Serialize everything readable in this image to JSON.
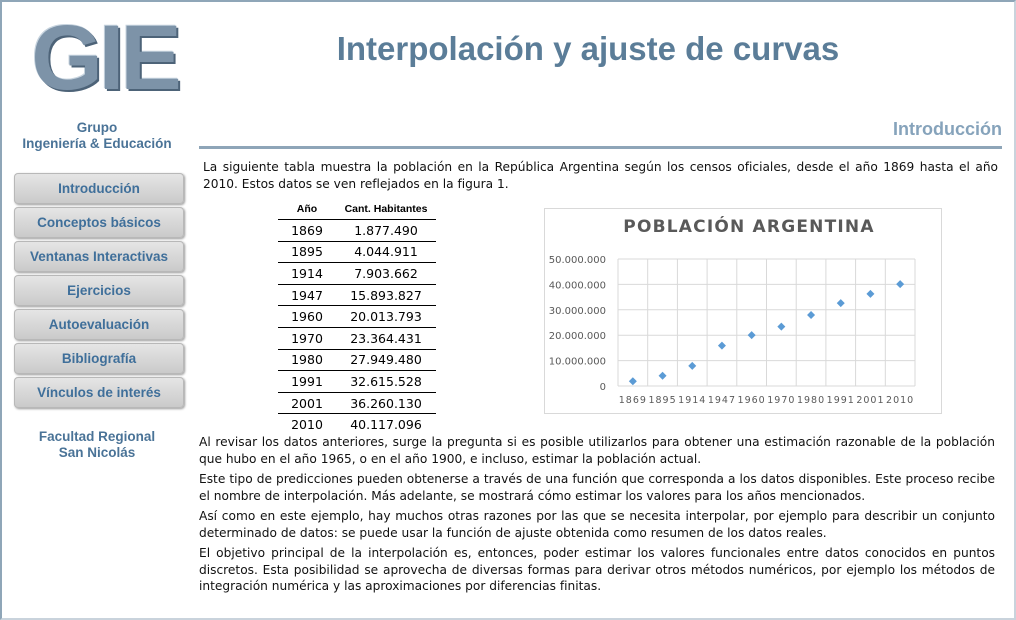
{
  "logo": "GIE",
  "sidebar": {
    "group": [
      "Grupo",
      "Ingeniería & Educación"
    ],
    "nav": [
      "Introducción",
      "Conceptos básicos",
      "Ventanas Interactivas",
      "Ejercicios",
      "Autoevaluación",
      "Bibliografía",
      "Vínculos de interés"
    ],
    "faculty": [
      "Facultad Regional",
      "San Nicolás"
    ]
  },
  "header": {
    "title": "Interpolación y ajuste de curvas",
    "section": "Introducción"
  },
  "intro": "La siguiente tabla muestra la población en la República Argentina según los censos oficiales, desde el año 1869 hasta el año 2010. Estos datos se ven reflejados en la figura 1.",
  "table": {
    "header": [
      "Año",
      "Cant. Habitantes"
    ],
    "rows": [
      [
        "1869",
        "1.877.490"
      ],
      [
        "1895",
        "4.044.911"
      ],
      [
        "1914",
        "7.903.662"
      ],
      [
        "1947",
        "15.893.827"
      ],
      [
        "1960",
        "20.013.793"
      ],
      [
        "1970",
        "23.364.431"
      ],
      [
        "1980",
        "27.949.480"
      ],
      [
        "1991",
        "32.615.528"
      ],
      [
        "2001",
        "36.260.130"
      ],
      [
        "2010",
        "40.117.096"
      ]
    ]
  },
  "chart_data": {
    "type": "scatter",
    "title": "POBLACIÓN ARGENTINA",
    "categories": [
      "1869",
      "1895",
      "1914",
      "1947",
      "1960",
      "1970",
      "1980",
      "1991",
      "2001",
      "2010"
    ],
    "values": [
      1877490,
      4044911,
      7903662,
      15893827,
      20013793,
      23364431,
      27949480,
      32615528,
      36260130,
      40117096
    ],
    "color": "#5b9bd5",
    "ylim": [
      0,
      50000000
    ],
    "yticks": [
      0,
      {
        "value": 10000000,
        "label": "10.000.000"
      },
      {
        "value": 20000000,
        "label": "20.000.000"
      },
      {
        "value": 30000000,
        "label": "30.000.000"
      },
      {
        "value": 40000000,
        "label": "40.000.000"
      },
      {
        "value": 50000000,
        "label": "50.000.000"
      }
    ],
    "grid": true
  },
  "paragraphs": [
    "Al revisar los datos anteriores, surge la pregunta si es posible utilizarlos para obtener una estimación razonable de la población que hubo en el año 1965, o en el año 1900, e incluso, estimar la población actual.",
    "Este tipo de predicciones pueden obtenerse a través de una función que corresponda a los datos disponibles. Este proceso recibe el nombre de interpolación. Más adelante, se mostrará cómo estimar los valores para los años mencionados.",
    "Así como en este ejemplo, hay muchos otras razones por las que se necesita interpolar, por ejemplo para describir un conjunto determinado de datos: se puede usar la función de ajuste obtenida como resumen de los datos reales.",
    "El objetivo principal de la interpolación es, entonces, poder estimar los valores funcionales entre datos conocidos en puntos discretos. Esta posibilidad se aprovecha de diversas formas para derivar otros métodos numéricos, por ejemplo los métodos de integración numérica y las aproximaciones por diferencias finitas."
  ]
}
